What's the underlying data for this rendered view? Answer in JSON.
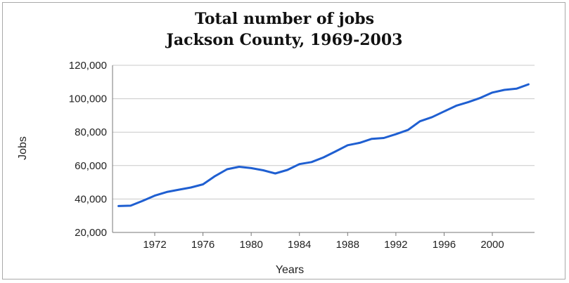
{
  "chart_data": {
    "type": "line",
    "title": "Total number of jobs",
    "subtitle": "Jackson County, 1969-2003",
    "xlabel": "Years",
    "ylabel": "Jobs",
    "xlim": [
      1968.5,
      2003.5
    ],
    "ylim": [
      20000,
      120000
    ],
    "x_ticks": [
      1972,
      1976,
      1980,
      1984,
      1988,
      1992,
      1996,
      2000
    ],
    "y_ticks": [
      20000,
      40000,
      60000,
      80000,
      100000,
      120000
    ],
    "y_tick_labels": [
      "20,000",
      "40,000",
      "60,000",
      "80,000",
      "100,000",
      "120,000"
    ],
    "x_tick_labels": [
      "1972",
      "1976",
      "1980",
      "1984",
      "1988",
      "1992",
      "1996",
      "2000"
    ],
    "grid": "horizontal",
    "line_color": "#1f5fd1",
    "series": [
      {
        "x": [
          1969,
          1970,
          1971,
          1972,
          1973,
          1974,
          1975,
          1976,
          1977,
          1978,
          1979,
          1980,
          1981,
          1982,
          1983,
          1984,
          1985,
          1986,
          1987,
          1988,
          1989,
          1990,
          1991,
          1992,
          1993,
          1994,
          1995,
          1996,
          1997,
          1998,
          1999,
          2000,
          2001,
          2002,
          2003
        ],
        "values": [
          35800,
          36000,
          38900,
          42000,
          44200,
          45600,
          46900,
          48800,
          53700,
          57800,
          59300,
          58500,
          57200,
          55300,
          57400,
          60900,
          62100,
          64900,
          68500,
          72200,
          73600,
          76000,
          76500,
          78800,
          81300,
          86500,
          89000,
          92400,
          95800,
          98000,
          100500,
          103700,
          105300,
          106000,
          108600
        ]
      }
    ]
  }
}
